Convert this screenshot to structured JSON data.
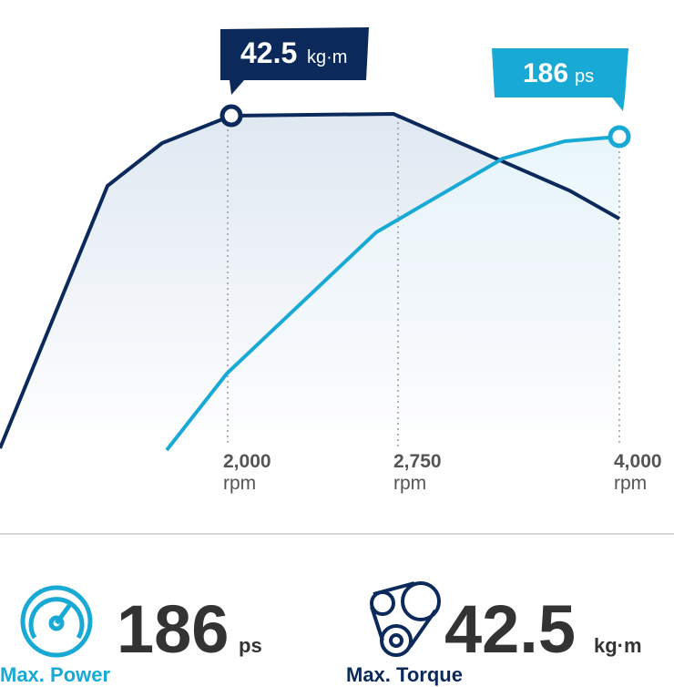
{
  "torque_callout": {
    "value": "42.5",
    "unit": "kg·m"
  },
  "power_callout": {
    "value": "186",
    "unit": "ps"
  },
  "rpm_markers": [
    {
      "value": "2,000",
      "unit": "rpm"
    },
    {
      "value": "2,750",
      "unit": "rpm"
    },
    {
      "value": "4,000",
      "unit": "rpm"
    }
  ],
  "stats": [
    {
      "value": "186",
      "unit": "ps",
      "label": "Max. Power"
    },
    {
      "value": "42.5",
      "unit": "kg·m",
      "label": "Max. Torque"
    }
  ]
}
